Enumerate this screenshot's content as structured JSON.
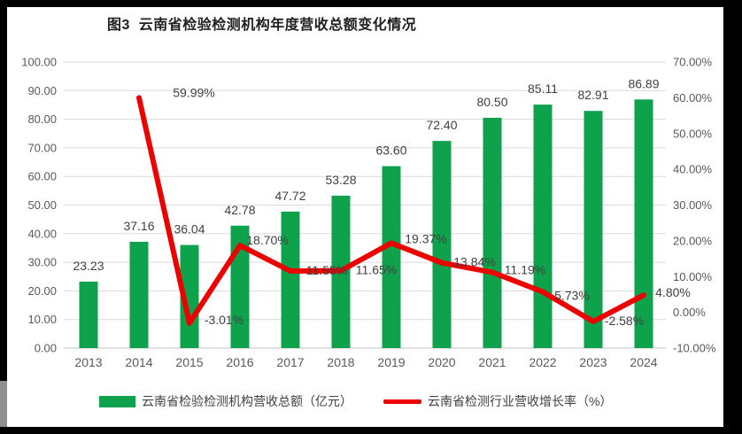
{
  "title": "图3  云南省检验检测机构年度营收总额变化情况",
  "legend": {
    "bar_label": "云南省检验检测机构营收总额（亿元）",
    "line_label": "云南省检测行业营收增长率（%）"
  },
  "colors": {
    "bar": "#0FA24D",
    "line": "#EC0000",
    "grid": "#DADADA",
    "axis_line": "#C3C3C3",
    "axis_text": "#595959",
    "data_label": "#404040",
    "frame": "#000000"
  },
  "chart_data": {
    "type": "combo_bar_line",
    "title": "图3  云南省检验检测机构年度营收总额变化情况",
    "categories": [
      "2013",
      "2014",
      "2015",
      "2016",
      "2017",
      "2018",
      "2019",
      "2020",
      "2021",
      "2022",
      "2023",
      "2024"
    ],
    "series": [
      {
        "name": "云南省检验检测机构营收总额（亿元）",
        "type": "bar",
        "axis": "left",
        "color": "#0FA24D",
        "values": [
          23.23,
          37.16,
          36.04,
          42.78,
          47.72,
          53.28,
          63.6,
          72.4,
          80.5,
          85.11,
          82.91,
          86.89
        ],
        "labels": [
          "23.23",
          "37.16",
          "36.04",
          "42.78",
          "47.72",
          "53.28",
          "63.60",
          "72.40",
          "80.50",
          "85.11",
          "82.91",
          "86.89"
        ]
      },
      {
        "name": "云南省检测行业营收增长率（%）",
        "type": "line",
        "axis": "right",
        "color": "#EC0000",
        "values": [
          null,
          59.99,
          -3.01,
          18.7,
          11.55,
          11.65,
          19.37,
          13.84,
          11.19,
          5.73,
          -2.58,
          4.8
        ],
        "labels": [
          null,
          "59.99%",
          "-3.01%",
          "18.70%",
          "11.55%",
          "11.65%",
          "19.37%",
          "13.84%",
          "11.19%",
          "5.73%",
          "-2.58%",
          "4.80%"
        ],
        "label_offsets": [
          null,
          [
            62,
            -1
          ],
          [
            39,
            1
          ],
          [
            31,
            -1
          ],
          [
            41,
            4
          ],
          [
            40,
            4
          ],
          [
            39,
            0
          ],
          [
            37,
            4
          ],
          [
            37,
            2
          ],
          [
            33,
            9
          ],
          [
            35,
            4
          ],
          [
            33,
            2
          ]
        ]
      }
    ],
    "left_axis": {
      "min": 0,
      "max": 100,
      "step": 10,
      "tick_labels": [
        "100.00",
        "90.00",
        "80.00",
        "70.00",
        "60.00",
        "50.00",
        "40.00",
        "30.00",
        "20.00",
        "10.00",
        "0.00"
      ]
    },
    "right_axis": {
      "min": -10,
      "max": 70,
      "step": 10,
      "tick_labels": [
        "70.00%",
        "60.00%",
        "50.00%",
        "40.00%",
        "30.00%",
        "20.00%",
        "10.00%",
        "0.00%",
        "-10.00%"
      ]
    },
    "grid": true,
    "legend_position": "bottom"
  }
}
